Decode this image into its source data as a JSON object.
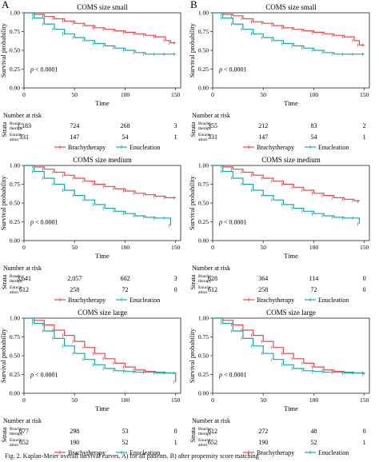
{
  "figure": {
    "caption": "Fig. 2. Kaplan-Meier overall survival curves. A) for all patients. B) after propensity score matching"
  },
  "colors": {
    "brachytherapy": "#e8474b",
    "enucleation": "#17a8ad",
    "axis": "#222222"
  },
  "chart_data": [
    {
      "type": "line",
      "panel": "A",
      "title": "COMS size small",
      "xlabel": "Time",
      "ylabel": "Survival probability",
      "xlim": [
        0,
        155
      ],
      "ylim": [
        0,
        1
      ],
      "xticks": [
        0,
        50,
        100,
        150
      ],
      "yticks": [
        "0.00",
        "0.25",
        "0.50",
        "0.75",
        "1.00"
      ],
      "pvalue": "p < 0.0001",
      "strata_label": "Strata",
      "risk_title": "Number at risk",
      "series": [
        {
          "name": "Brachytherapy",
          "risk_label": "Brachy-\ntherapy",
          "risk": [
            "1,183",
            "724",
            "268",
            "3"
          ],
          "x": [
            0,
            10,
            20,
            30,
            40,
            50,
            60,
            70,
            80,
            90,
            100,
            110,
            120,
            130,
            140,
            145,
            150
          ],
          "y": [
            1,
            0.98,
            0.95,
            0.92,
            0.89,
            0.86,
            0.83,
            0.8,
            0.78,
            0.76,
            0.74,
            0.72,
            0.7,
            0.68,
            0.63,
            0.6,
            0.6
          ]
        },
        {
          "name": "Enucleation",
          "risk_label": "Enucle-\nation",
          "risk": [
            "331",
            "147",
            "54",
            "1"
          ],
          "x": [
            0,
            10,
            20,
            30,
            40,
            50,
            60,
            70,
            80,
            90,
            100,
            110,
            120,
            130,
            140,
            150
          ],
          "y": [
            1,
            0.93,
            0.85,
            0.78,
            0.72,
            0.67,
            0.63,
            0.59,
            0.56,
            0.53,
            0.5,
            0.47,
            0.45,
            0.45,
            0.45,
            0.45
          ]
        }
      ]
    },
    {
      "type": "line",
      "panel": "B",
      "title": "COMS size small",
      "xlabel": "Time",
      "ylabel": "Survival probability",
      "xlim": [
        0,
        155
      ],
      "ylim": [
        0,
        1
      ],
      "xticks": [
        0,
        50,
        100,
        150
      ],
      "yticks": [
        "0.00",
        "0.25",
        "0.50",
        "0.75",
        "1.00"
      ],
      "pvalue": "p < 0.0001",
      "strata_label": "Strata",
      "risk_title": "Number at risk",
      "series": [
        {
          "name": "Brachytherapy",
          "risk_label": "Brachy-\ntherapy",
          "risk": [
            "355",
            "212",
            "83",
            "2"
          ],
          "x": [
            0,
            10,
            20,
            30,
            40,
            50,
            60,
            70,
            80,
            90,
            100,
            110,
            120,
            130,
            140,
            145,
            150
          ],
          "y": [
            1,
            0.98,
            0.96,
            0.92,
            0.88,
            0.86,
            0.83,
            0.8,
            0.78,
            0.76,
            0.74,
            0.72,
            0.7,
            0.68,
            0.63,
            0.57,
            0.57
          ]
        },
        {
          "name": "Enucleation",
          "risk_label": "Enucle-\nation",
          "risk": [
            "331",
            "147",
            "54",
            "1"
          ],
          "x": [
            0,
            10,
            20,
            30,
            40,
            50,
            60,
            70,
            80,
            90,
            100,
            110,
            120,
            130,
            140,
            150
          ],
          "y": [
            1,
            0.93,
            0.85,
            0.78,
            0.72,
            0.67,
            0.63,
            0.59,
            0.56,
            0.53,
            0.5,
            0.47,
            0.45,
            0.45,
            0.45,
            0.45
          ]
        }
      ]
    },
    {
      "type": "line",
      "panel": "A",
      "title": "COMS size medium",
      "xlabel": "Time",
      "ylabel": "Survival probability",
      "xlim": [
        0,
        155
      ],
      "ylim": [
        0,
        1
      ],
      "xticks": [
        0,
        50,
        100,
        150
      ],
      "yticks": [
        "0.00",
        "0.25",
        "0.50",
        "0.75",
        "1.00"
      ],
      "pvalue": "p < 0.0001",
      "strata_label": "Strata",
      "risk_title": "Number at risk",
      "series": [
        {
          "name": "Brachytherapy",
          "risk_label": "Brachy-\ntherapy",
          "risk": [
            "3,641",
            "2,057",
            "602",
            "3"
          ],
          "x": [
            0,
            10,
            20,
            30,
            40,
            50,
            60,
            70,
            80,
            90,
            100,
            110,
            120,
            130,
            140,
            150
          ],
          "y": [
            1,
            0.98,
            0.95,
            0.91,
            0.87,
            0.83,
            0.79,
            0.75,
            0.72,
            0.69,
            0.66,
            0.63,
            0.61,
            0.59,
            0.57,
            0.57
          ]
        },
        {
          "name": "Enucleation",
          "risk_label": "Enucle-\nation",
          "risk": [
            "612",
            "258",
            "72",
            "0"
          ],
          "x": [
            0,
            10,
            20,
            30,
            40,
            50,
            60,
            70,
            80,
            90,
            100,
            110,
            120,
            130,
            140,
            145
          ],
          "y": [
            1,
            0.92,
            0.83,
            0.75,
            0.67,
            0.6,
            0.54,
            0.48,
            0.43,
            0.39,
            0.36,
            0.33,
            0.31,
            0.3,
            0.3,
            0.2
          ]
        }
      ]
    },
    {
      "type": "line",
      "panel": "B",
      "title": "COMS size medium",
      "xlabel": "Time",
      "ylabel": "Survival probability",
      "xlim": [
        0,
        155
      ],
      "ylim": [
        0,
        1
      ],
      "xticks": [
        0,
        50,
        100,
        150
      ],
      "yticks": [
        "0.00",
        "0.25",
        "0.50",
        "0.75",
        "1.00"
      ],
      "pvalue": "p < 0.0001",
      "strata_label": "Strata",
      "risk_title": "Number at risk",
      "series": [
        {
          "name": "Brachytherapy",
          "risk_label": "Brachy-\ntherapy",
          "risk": [
            "628",
            "364",
            "114",
            "0"
          ],
          "x": [
            0,
            10,
            20,
            30,
            40,
            50,
            60,
            70,
            80,
            90,
            100,
            110,
            120,
            130,
            140,
            145
          ],
          "y": [
            1,
            0.98,
            0.95,
            0.91,
            0.87,
            0.83,
            0.79,
            0.75,
            0.71,
            0.67,
            0.63,
            0.6,
            0.57,
            0.55,
            0.53,
            0.52
          ]
        },
        {
          "name": "Enucleation",
          "risk_label": "Enucle-\nation",
          "risk": [
            "612",
            "258",
            "72",
            "0"
          ],
          "x": [
            0,
            10,
            20,
            30,
            40,
            50,
            60,
            70,
            80,
            90,
            100,
            110,
            120,
            130,
            140,
            145
          ],
          "y": [
            1,
            0.92,
            0.83,
            0.75,
            0.67,
            0.6,
            0.54,
            0.48,
            0.43,
            0.39,
            0.36,
            0.33,
            0.31,
            0.3,
            0.3,
            0.22
          ]
        }
      ]
    },
    {
      "type": "line",
      "panel": "A",
      "title": "COMS size large",
      "xlabel": "Time",
      "ylabel": "Survival probability",
      "xlim": [
        0,
        155
      ],
      "ylim": [
        0,
        1
      ],
      "xticks": [
        0,
        50,
        100,
        150
      ],
      "yticks": [
        "0.00",
        "0.25",
        "0.50",
        "0.75",
        "1.00"
      ],
      "pvalue": "p < 0.0001",
      "strata_label": "Strata",
      "risk_title": "Number at risk",
      "series": [
        {
          "name": "Brachytherapy",
          "risk_label": "Brachy-\ntherapy",
          "risk": [
            "677",
            "298",
            "53",
            "0"
          ],
          "x": [
            0,
            10,
            20,
            30,
            40,
            50,
            60,
            70,
            80,
            90,
            100,
            110,
            120,
            130,
            140,
            150
          ],
          "y": [
            1,
            0.97,
            0.91,
            0.84,
            0.77,
            0.69,
            0.61,
            0.53,
            0.46,
            0.4,
            0.35,
            0.31,
            0.29,
            0.28,
            0.27,
            0.15
          ]
        },
        {
          "name": "Enucleation",
          "risk_label": "Enucle-\nation",
          "risk": [
            "652",
            "190",
            "52",
            "1"
          ],
          "x": [
            0,
            10,
            20,
            30,
            40,
            50,
            60,
            70,
            80,
            90,
            100,
            110,
            120,
            130,
            140,
            150
          ],
          "y": [
            1,
            0.93,
            0.83,
            0.73,
            0.63,
            0.53,
            0.45,
            0.38,
            0.33,
            0.3,
            0.29,
            0.28,
            0.28,
            0.27,
            0.27,
            0.27
          ]
        }
      ]
    },
    {
      "type": "line",
      "panel": "B",
      "title": "COMS size large",
      "xlabel": "Time",
      "ylabel": "Survival probability",
      "xlim": [
        0,
        155
      ],
      "ylim": [
        0,
        1
      ],
      "xticks": [
        0,
        50,
        100,
        150
      ],
      "yticks": [
        "0.00",
        "0.25",
        "0.50",
        "0.75",
        "1.00"
      ],
      "pvalue": "p < 0.0001",
      "strata_label": "Strata",
      "risk_title": "Number at risk",
      "series": [
        {
          "name": "Brachytherapy",
          "risk_label": "Brachy-\ntherapy",
          "risk": [
            "612",
            "272",
            "48",
            "0"
          ],
          "x": [
            0,
            10,
            20,
            30,
            40,
            50,
            60,
            70,
            80,
            90,
            100,
            110,
            120,
            130,
            140,
            150
          ],
          "y": [
            1,
            0.97,
            0.91,
            0.84,
            0.77,
            0.69,
            0.61,
            0.53,
            0.46,
            0.4,
            0.35,
            0.31,
            0.29,
            0.28,
            0.27,
            0.25
          ]
        },
        {
          "name": "Enucleation",
          "risk_label": "Enucle-\nation",
          "risk": [
            "652",
            "190",
            "52",
            "1"
          ],
          "x": [
            0,
            10,
            20,
            30,
            40,
            50,
            60,
            70,
            80,
            90,
            100,
            110,
            120,
            130,
            140,
            150
          ],
          "y": [
            1,
            0.93,
            0.83,
            0.73,
            0.63,
            0.53,
            0.45,
            0.38,
            0.33,
            0.3,
            0.29,
            0.28,
            0.28,
            0.27,
            0.27,
            0.27
          ]
        }
      ]
    }
  ]
}
